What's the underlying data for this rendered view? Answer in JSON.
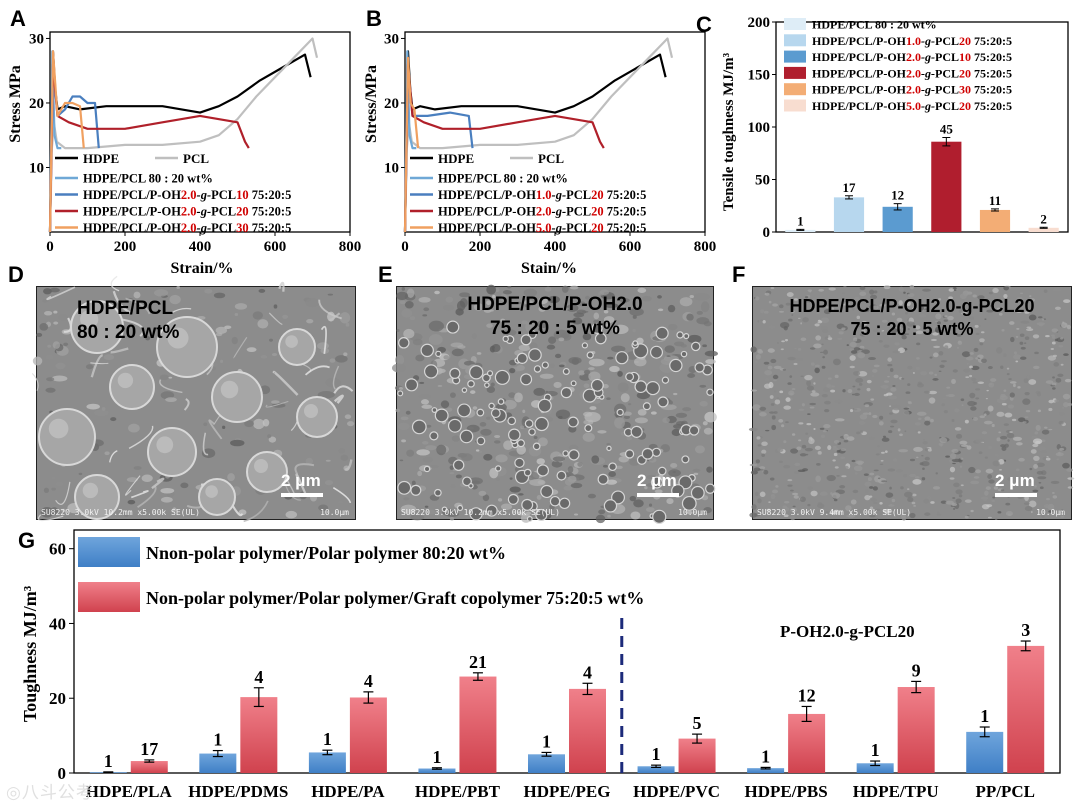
{
  "panels": {
    "A": "A",
    "B": "B",
    "C": "C",
    "D": "D",
    "E": "E",
    "F": "F",
    "G": "G"
  },
  "panelA": {
    "ylabel": "Stress MPa",
    "xlabel": "Strain/%",
    "xticks": [
      "0",
      "200",
      "400",
      "600",
      "800"
    ],
    "yticks": [
      "10",
      "20",
      "30"
    ],
    "legend": [
      {
        "parts": [
          {
            "t": "HDPE/PCL 80 : 20 wt%",
            "c": "#000"
          }
        ],
        "color": "#6fa8d6"
      },
      {
        "parts": [
          {
            "t": "HDPE/PCL/P-OH",
            "c": "#000"
          },
          {
            "t": "2.0",
            "c": "#d00000"
          },
          {
            "t": "-g-",
            "c": "#000"
          },
          {
            "t": "PCL",
            "c": "#000"
          },
          {
            "t": "10",
            "c": "#d00000"
          },
          {
            "t": "  75:20:5",
            "c": "#000"
          }
        ],
        "color": "#4a7fbf"
      },
      {
        "parts": [
          {
            "t": "HDPE/PCL/P-OH",
            "c": "#000"
          },
          {
            "t": "2.0",
            "c": "#d00000"
          },
          {
            "t": "-g-",
            "c": "#000"
          },
          {
            "t": "PCL",
            "c": "#000"
          },
          {
            "t": "20",
            "c": "#d00000"
          },
          {
            "t": "  75:20:5",
            "c": "#000"
          }
        ],
        "color": "#b0202a"
      },
      {
        "parts": [
          {
            "t": "HDPE/PCL/P-OH",
            "c": "#000"
          },
          {
            "t": "2.0",
            "c": "#d00000"
          },
          {
            "t": "-g-",
            "c": "#000"
          },
          {
            "t": "PCL",
            "c": "#000"
          },
          {
            "t": "30",
            "c": "#d00000"
          },
          {
            "t": "  75:20:5",
            "c": "#000"
          }
        ],
        "color": "#f0a060"
      }
    ],
    "top_legend": [
      "HDPE",
      "PCL"
    ]
  },
  "panelB": {
    "ylabel": "Stress/MPa",
    "xlabel": "Stain/%",
    "xticks": [
      "0",
      "200",
      "400",
      "600",
      "800"
    ],
    "yticks": [
      "10",
      "20",
      "30"
    ],
    "legend": [
      {
        "parts": [
          {
            "t": "HDPE/PCL 80 : 20 wt%",
            "c": "#000"
          }
        ],
        "color": "#6fa8d6"
      },
      {
        "parts": [
          {
            "t": "HDPE/PCL/P-OH",
            "c": "#000"
          },
          {
            "t": "1.0",
            "c": "#d00000"
          },
          {
            "t": "-g-",
            "c": "#000"
          },
          {
            "t": "PCL",
            "c": "#000"
          },
          {
            "t": "20",
            "c": "#d00000"
          },
          {
            "t": "  75:20:5",
            "c": "#000"
          }
        ],
        "color": "#4a7fbf"
      },
      {
        "parts": [
          {
            "t": "HDPE/PCL/P-OH",
            "c": "#000"
          },
          {
            "t": "2.0",
            "c": "#d00000"
          },
          {
            "t": "-g-",
            "c": "#000"
          },
          {
            "t": "PCL",
            "c": "#000"
          },
          {
            "t": "20",
            "c": "#d00000"
          },
          {
            "t": "  75:20:5",
            "c": "#000"
          }
        ],
        "color": "#b0202a"
      },
      {
        "parts": [
          {
            "t": "HDPE/PCL/P-OH",
            "c": "#000"
          },
          {
            "t": "5.0",
            "c": "#d00000"
          },
          {
            "t": "-g-",
            "c": "#000"
          },
          {
            "t": "PCL",
            "c": "#000"
          },
          {
            "t": "20",
            "c": "#d00000"
          },
          {
            "t": "  75:20:5",
            "c": "#000"
          }
        ],
        "color": "#f0a060"
      }
    ],
    "top_legend": [
      "HDPE",
      "PCL"
    ]
  },
  "panelC": {
    "ylabel": "Tensile toughness MJ/m³",
    "yticks": [
      "0",
      "50",
      "100",
      "150",
      "200"
    ],
    "legend": [
      {
        "parts": [
          {
            "t": "HDPE/PCL 80 : 20 wt%",
            "c": "#000"
          }
        ],
        "color": "#deedf7"
      },
      {
        "parts": [
          {
            "t": "HDPE/PCL/P-OH",
            "c": "#000"
          },
          {
            "t": "1.0",
            "c": "#d00000"
          },
          {
            "t": "-g-",
            "c": "#000"
          },
          {
            "t": "PCL",
            "c": "#000"
          },
          {
            "t": "20",
            "c": "#d00000"
          },
          {
            "t": "  75:20:5",
            "c": "#000"
          }
        ],
        "color": "#b7d7ee"
      },
      {
        "parts": [
          {
            "t": "HDPE/PCL/P-OH",
            "c": "#000"
          },
          {
            "t": "2.0",
            "c": "#d00000"
          },
          {
            "t": "-g-",
            "c": "#000"
          },
          {
            "t": "PCL",
            "c": "#000"
          },
          {
            "t": "10",
            "c": "#d00000"
          },
          {
            "t": "  75:20:5",
            "c": "#000"
          }
        ],
        "color": "#5b9bd0"
      },
      {
        "parts": [
          {
            "t": "HDPE/PCL/P-OH",
            "c": "#000"
          },
          {
            "t": "2.0",
            "c": "#d00000"
          },
          {
            "t": "-g-",
            "c": "#000"
          },
          {
            "t": "PCL",
            "c": "#000"
          },
          {
            "t": "20",
            "c": "#d00000"
          },
          {
            "t": "  75:20:5",
            "c": "#000"
          }
        ],
        "color": "#b01e2e"
      },
      {
        "parts": [
          {
            "t": "HDPE/PCL/P-OH",
            "c": "#000"
          },
          {
            "t": "2.0",
            "c": "#d00000"
          },
          {
            "t": "-g-",
            "c": "#000"
          },
          {
            "t": "PCL",
            "c": "#000"
          },
          {
            "t": "30",
            "c": "#d00000"
          },
          {
            "t": "  75:20:5",
            "c": "#000"
          }
        ],
        "color": "#f3ad75"
      },
      {
        "parts": [
          {
            "t": "HDPE/PCL/P-OH",
            "c": "#000"
          },
          {
            "t": "5.0",
            "c": "#d00000"
          },
          {
            "t": "-g-",
            "c": "#000"
          },
          {
            "t": "PCL",
            "c": "#000"
          },
          {
            "t": "20",
            "c": "#d00000"
          },
          {
            "t": "  75:20:5",
            "c": "#000"
          }
        ],
        "color": "#f8ddd0"
      }
    ]
  },
  "sem": {
    "D": {
      "label": "HDPE/PCL\n80 : 20 wt%",
      "scale": "2 μm",
      "info": "SU8220 3.0kV 10.2mm x5.00k SE(UL)",
      "fov": "10.0μm"
    },
    "E": {
      "label": "HDPE/PCL/P-OH2.0\n75 : 20 : 5 wt%",
      "scale": "2 μm",
      "info": "SU8220 3.0kV 10.2mm x5.00k SE(UL)",
      "fov": "10.0μm"
    },
    "F": {
      "label": "HDPE/PCL/P-OH2.0-g-PCL20\n75 : 20 : 5 wt%",
      "scale": "2 μm",
      "info": "SU8220 3.0kV 9.4mm x5.00k SE(UL)",
      "fov": "10.0μm"
    }
  },
  "panelG": {
    "ylabel": "Toughness MJ/m³",
    "yticks": [
      "0",
      "20",
      "40",
      "60"
    ],
    "legend": [
      "Nnon-polar polymer/Polar polymer 80:20 wt%",
      "Non-polar polymer/Polar polymer/Graft copolymer 75:20:5 wt%"
    ],
    "annotation": "P-OH2.0-g-PCL20",
    "colors": {
      "blue": "#3f7fc6",
      "red": "#d0424e"
    }
  },
  "watermark": "八斗公考",
  "chart_data": [
    {
      "type": "line",
      "title": "",
      "xlabel": "Strain/%",
      "ylabel": "Stress MPa",
      "xlim": [
        0,
        800
      ],
      "ylim": [
        0,
        31
      ],
      "series": [
        {
          "name": "HDPE",
          "x": [
            0,
            8,
            14,
            20,
            40,
            80,
            150,
            250,
            300,
            400,
            450,
            500,
            560,
            620,
            680,
            695
          ],
          "y": [
            0,
            28,
            22,
            19,
            19.5,
            19,
            19.5,
            19.5,
            19.5,
            18.5,
            19.5,
            21,
            23.5,
            25.5,
            27.5,
            24
          ]
        },
        {
          "name": "PCL",
          "x": [
            0,
            5,
            10,
            18,
            40,
            100,
            200,
            300,
            400,
            450,
            500,
            550,
            600,
            650,
            700,
            712
          ],
          "y": [
            0,
            13,
            17,
            14,
            13,
            13,
            13.5,
            13.5,
            14,
            15,
            17.5,
            21,
            24,
            27,
            30,
            27
          ]
        },
        {
          "name": "HDPE/PCL 80 : 20 wt%",
          "x": [
            0,
            6,
            12,
            20,
            30
          ],
          "y": [
            0,
            28,
            15,
            13,
            13
          ]
        },
        {
          "name": "HDPE/PCL/P-OH2.0-g-PCL10 75:20:5",
          "x": [
            0,
            8,
            20,
            40,
            60,
            80,
            100,
            120,
            130
          ],
          "y": [
            0,
            26,
            18,
            19,
            21,
            21,
            20,
            20,
            13
          ]
        },
        {
          "name": "HDPE/PCL/P-OH2.0-g-PCL20 75:20:5",
          "x": [
            0,
            8,
            20,
            50,
            100,
            200,
            300,
            400,
            500,
            520,
            530
          ],
          "y": [
            0,
            26,
            18,
            17,
            16,
            16,
            17,
            18,
            17,
            14,
            13
          ]
        },
        {
          "name": "HDPE/PCL/P-OH2.0-g-PCL30 75:20:5",
          "x": [
            0,
            8,
            20,
            40,
            60,
            80,
            90
          ],
          "y": [
            0,
            28,
            18,
            20,
            20,
            19.5,
            13
          ]
        }
      ]
    },
    {
      "type": "line",
      "title": "",
      "xlabel": "Stain/%",
      "ylabel": "Stress/MPa",
      "xlim": [
        0,
        800
      ],
      "ylim": [
        0,
        31
      ],
      "series": [
        {
          "name": "HDPE",
          "x": [
            0,
            8,
            14,
            20,
            40,
            80,
            150,
            250,
            300,
            400,
            450,
            500,
            560,
            620,
            680,
            695
          ],
          "y": [
            0,
            28,
            22,
            19,
            19.5,
            19,
            19.5,
            19.5,
            19.5,
            18.5,
            19.5,
            21,
            23.5,
            25.5,
            27.5,
            24
          ]
        },
        {
          "name": "PCL",
          "x": [
            0,
            5,
            10,
            18,
            40,
            100,
            200,
            300,
            400,
            450,
            500,
            550,
            600,
            650,
            700,
            712
          ],
          "y": [
            0,
            13,
            17,
            14,
            13,
            13,
            13.5,
            13.5,
            14,
            15,
            17.5,
            21,
            24,
            27,
            30,
            27
          ]
        },
        {
          "name": "HDPE/PCL 80 : 20 wt%",
          "x": [
            0,
            6,
            12,
            20,
            30
          ],
          "y": [
            0,
            28,
            15,
            13,
            13
          ]
        },
        {
          "name": "HDPE/PCL/P-OH1.0-g-PCL20 75:20:5",
          "x": [
            0,
            8,
            20,
            60,
            120,
            170,
            180
          ],
          "y": [
            0,
            25,
            18,
            18,
            18.5,
            18,
            13
          ]
        },
        {
          "name": "HDPE/PCL/P-OH2.0-g-PCL20 75:20:5",
          "x": [
            0,
            8,
            20,
            50,
            100,
            200,
            300,
            400,
            500,
            520,
            530
          ],
          "y": [
            0,
            26,
            18,
            17,
            16,
            16,
            17,
            18,
            17,
            14,
            13
          ]
        },
        {
          "name": "HDPE/PCL/P-OH5.0-g-PCL20 75:20:5",
          "x": [
            0,
            8,
            15,
            25,
            35
          ],
          "y": [
            0,
            27,
            20,
            19,
            13
          ]
        }
      ]
    },
    {
      "type": "bar",
      "title": "",
      "xlabel": "",
      "ylabel": "Tensile toughness MJ/m³",
      "ylim": [
        0,
        200
      ],
      "categories": [
        "HDPE/PCL 80 : 20 wt%",
        "HDPE/PCL/P-OH1.0-g-PCL20 75:20:5",
        "HDPE/PCL/P-OH2.0-g-PCL10 75:20:5",
        "HDPE/PCL/P-OH2.0-g-PCL20 75:20:5",
        "HDPE/PCL/P-OH2.0-g-PCL30 75:20:5",
        "HDPE/PCL/P-OH5.0-g-PCL20 75:20:5"
      ],
      "values": [
        2,
        33,
        24,
        86,
        21,
        4
      ],
      "errors": [
        0.5,
        1.5,
        3,
        4,
        1,
        0.5
      ],
      "labels": [
        "1",
        "17",
        "12",
        "45",
        "11",
        "2"
      ]
    },
    {
      "type": "bar",
      "title": "",
      "xlabel": "",
      "ylabel": "Toughness MJ/m³",
      "ylim": [
        0,
        65
      ],
      "categories": [
        "HDPE/PLA",
        "HDPE/PDMS",
        "HDPE/PA",
        "HDPE/PBT",
        "HDPE/PEG",
        "HDPE/PVC",
        "HDPE/PBS",
        "HDPE/TPU",
        "PP/PCL"
      ],
      "series": [
        {
          "name": "Nnon-polar polymer/Polar polymer 80:20 wt%",
          "values": [
            0.2,
            5.2,
            5.5,
            1.2,
            5.0,
            1.8,
            1.3,
            2.6,
            11.0
          ],
          "errors": [
            0.1,
            0.8,
            0.6,
            0.2,
            0.5,
            0.3,
            0.2,
            0.6,
            1.3
          ],
          "labels": [
            "1",
            "1",
            "1",
            "1",
            "1",
            "1",
            "1",
            "1",
            "1"
          ]
        },
        {
          "name": "Non-polar polymer/Polar polymer/Graft copolymer 75:20:5 wt%",
          "values": [
            3.2,
            20.3,
            20.2,
            25.8,
            22.5,
            9.2,
            15.8,
            23.0,
            34.0
          ],
          "errors": [
            0.3,
            2.5,
            1.5,
            1.0,
            1.5,
            1.2,
            2.0,
            1.5,
            1.3
          ],
          "labels": [
            "17",
            "4",
            "4",
            "21",
            "4",
            "5",
            "12",
            "9",
            "3"
          ]
        }
      ]
    }
  ]
}
